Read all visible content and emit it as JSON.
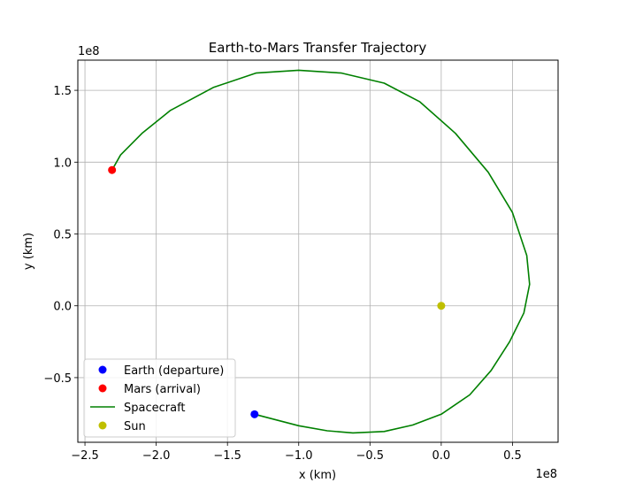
{
  "chart_data": {
    "type": "line",
    "title": "Earth-to-Mars Transfer Trajectory",
    "xlabel": "x (km)",
    "ylabel": "y (km)",
    "x_offset_label": "1e8",
    "y_offset_label": "1e8",
    "xlim": [
      -2.55,
      0.82
    ],
    "ylim": [
      -0.95,
      1.71
    ],
    "scale_factor": 100000000,
    "xticks": [
      -2.5,
      -2.0,
      -1.5,
      -1.0,
      -0.5,
      0.0,
      0.5
    ],
    "xtick_labels": [
      "−2.5",
      "−2.0",
      "−1.5",
      "−1.0",
      "−0.5",
      "0.0",
      "0.5"
    ],
    "yticks": [
      -0.5,
      0.0,
      0.5,
      1.0,
      1.5
    ],
    "ytick_labels": [
      "−0.5",
      "0.0",
      "0.5",
      "1.0",
      "1.5"
    ],
    "grid": true,
    "legend_position": "lower-left",
    "series": [
      {
        "name": "Earth (departure)",
        "kind": "point",
        "color": "#0000ff",
        "x": [
          -1.31
        ],
        "y": [
          -0.755
        ]
      },
      {
        "name": "Mars (arrival)",
        "kind": "point",
        "color": "#ff0000",
        "x": [
          -2.31
        ],
        "y": [
          0.945
        ]
      },
      {
        "name": "Spacecraft",
        "kind": "line",
        "color": "#008000",
        "x": [
          -1.31,
          -1.0,
          -0.8,
          -0.62,
          -0.4,
          -0.2,
          0.0,
          0.2,
          0.35,
          0.48,
          0.58,
          0.62,
          0.6,
          0.5,
          0.33,
          0.1,
          -0.15,
          -0.4,
          -0.7,
          -1.0,
          -1.3,
          -1.6,
          -1.9,
          -2.1,
          -2.25,
          -2.31
        ],
        "y": [
          -0.755,
          -0.835,
          -0.87,
          -0.885,
          -0.875,
          -0.83,
          -0.755,
          -0.62,
          -0.45,
          -0.25,
          -0.05,
          0.15,
          0.35,
          0.65,
          0.93,
          1.2,
          1.42,
          1.55,
          1.62,
          1.64,
          1.62,
          1.52,
          1.36,
          1.2,
          1.05,
          0.945
        ]
      },
      {
        "name": "Sun",
        "kind": "point",
        "color": "#bfbf00",
        "x": [
          0.0
        ],
        "y": [
          0.0
        ]
      }
    ]
  }
}
